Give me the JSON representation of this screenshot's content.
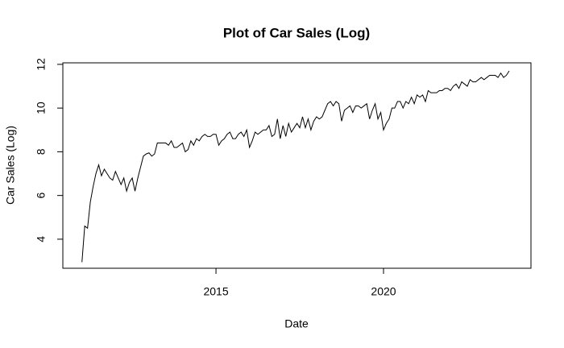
{
  "chart_data": {
    "type": "line",
    "title": "Plot of Car Sales (Log)",
    "x_label": "Date",
    "y_label": "Car Sales (Log)",
    "color": "#000000",
    "x": [
      2011,
      2011.083,
      2011.167,
      2011.25,
      2011.333,
      2011.417,
      2011.5,
      2011.583,
      2011.667,
      2011.75,
      2011.833,
      2011.917,
      2012,
      2012.083,
      2012.167,
      2012.25,
      2012.333,
      2012.417,
      2012.5,
      2012.583,
      2012.667,
      2012.75,
      2012.833,
      2012.917,
      2013,
      2013.083,
      2013.167,
      2013.25,
      2013.333,
      2013.417,
      2013.5,
      2013.583,
      2013.667,
      2013.75,
      2013.833,
      2013.917,
      2014,
      2014.083,
      2014.167,
      2014.25,
      2014.333,
      2014.417,
      2014.5,
      2014.583,
      2014.667,
      2014.75,
      2014.833,
      2014.917,
      2015,
      2015.083,
      2015.167,
      2015.25,
      2015.333,
      2015.417,
      2015.5,
      2015.583,
      2015.667,
      2015.75,
      2015.833,
      2015.917,
      2016,
      2016.083,
      2016.167,
      2016.25,
      2016.333,
      2016.417,
      2016.5,
      2016.583,
      2016.667,
      2016.75,
      2016.833,
      2016.917,
      2017,
      2017.083,
      2017.167,
      2017.25,
      2017.333,
      2017.417,
      2017.5,
      2017.583,
      2017.667,
      2017.75,
      2017.833,
      2017.917,
      2018,
      2018.083,
      2018.167,
      2018.25,
      2018.333,
      2018.417,
      2018.5,
      2018.583,
      2018.667,
      2018.75,
      2018.833,
      2018.917,
      2019,
      2019.083,
      2019.167,
      2019.25,
      2019.333,
      2019.417,
      2019.5,
      2019.583,
      2019.667,
      2019.75,
      2019.833,
      2019.917,
      2020,
      2020.083,
      2020.167,
      2020.25,
      2020.333,
      2020.417,
      2020.5,
      2020.583,
      2020.667,
      2020.75,
      2020.833,
      2020.917,
      2021,
      2021.083,
      2021.167,
      2021.25,
      2021.333,
      2021.417,
      2021.5,
      2021.583,
      2021.667,
      2021.75,
      2021.833,
      2021.917,
      2022,
      2022.083,
      2022.167,
      2022.25,
      2022.333,
      2022.417,
      2022.5,
      2022.583,
      2022.667,
      2022.75,
      2022.833,
      2022.917,
      2023,
      2023.083,
      2023.167,
      2023.25,
      2023.333,
      2023.417,
      2023.5,
      2023.583,
      2023.667,
      2023.75
    ],
    "values": [
      2.95,
      4.6,
      4.5,
      5.7,
      6.4,
      7.0,
      7.4,
      6.9,
      7.2,
      7.0,
      6.8,
      6.7,
      7.1,
      6.8,
      6.5,
      6.8,
      6.2,
      6.6,
      6.8,
      6.2,
      6.8,
      7.3,
      7.8,
      7.9,
      7.95,
      7.8,
      7.9,
      8.4,
      8.4,
      8.4,
      8.4,
      8.3,
      8.5,
      8.2,
      8.2,
      8.3,
      8.4,
      8.0,
      8.1,
      8.5,
      8.3,
      8.6,
      8.5,
      8.7,
      8.8,
      8.7,
      8.7,
      8.8,
      8.8,
      8.3,
      8.5,
      8.6,
      8.8,
      8.9,
      8.6,
      8.6,
      8.8,
      8.9,
      8.7,
      9.0,
      8.2,
      8.5,
      8.9,
      8.8,
      8.9,
      9.0,
      9.0,
      9.2,
      8.7,
      8.8,
      9.5,
      8.6,
      9.2,
      8.7,
      9.3,
      8.9,
      9.1,
      9.3,
      9.1,
      9.6,
      9.1,
      9.5,
      9.0,
      9.4,
      9.6,
      9.5,
      9.6,
      9.9,
      10.2,
      10.3,
      10.1,
      10.3,
      10.2,
      9.4,
      9.9,
      10.0,
      10.1,
      9.8,
      10.1,
      10.1,
      10.0,
      10.1,
      10.2,
      9.5,
      9.9,
      10.2,
      9.5,
      9.8,
      9.0,
      9.3,
      9.5,
      10.0,
      10.0,
      10.3,
      10.3,
      10.0,
      10.3,
      10.2,
      10.5,
      10.2,
      10.6,
      10.5,
      10.6,
      10.3,
      10.8,
      10.7,
      10.7,
      10.7,
      10.8,
      10.8,
      10.9,
      10.9,
      10.8,
      11.0,
      11.1,
      10.9,
      11.2,
      11.1,
      11.0,
      11.3,
      11.2,
      11.2,
      11.3,
      11.4,
      11.3,
      11.4,
      11.5,
      11.5,
      11.5,
      11.4,
      11.6,
      11.4,
      11.5,
      11.7
    ],
    "xlim": [
      2010.43,
      2024.4
    ],
    "ylim": [
      2.67,
      12.07
    ],
    "xticks": [
      2015,
      2020
    ],
    "yticks": [
      4,
      6,
      8,
      10,
      12
    ]
  }
}
